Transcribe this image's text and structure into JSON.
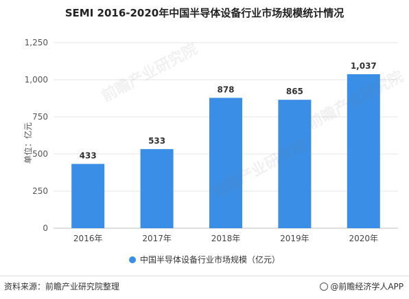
{
  "title": "SEMI 2016-2020年中国半导体设备行业市场规模统计情况",
  "ylabel": "单位：亿元",
  "legend_label": "中国半导体设备行业市场规模（亿元）",
  "source": "资料来源：前瞻产业研究院整理",
  "brand": "@前瞻经济学人APP",
  "watermark": "前瞻产业研究院",
  "colors": {
    "bar": "#3a8ee6",
    "grid": "#e5e5e5",
    "axis": "#bfbfbf"
  },
  "chart_data": {
    "type": "bar",
    "categories": [
      "2016年",
      "2017年",
      "2018年",
      "2019年",
      "2020年"
    ],
    "values": [
      433,
      533,
      878,
      865,
      1037
    ],
    "data_labels": [
      "433",
      "533",
      "878",
      "865",
      "1,037"
    ],
    "ylim": [
      0,
      1250
    ],
    "yticks": [
      0,
      250,
      500,
      750,
      1000,
      1250
    ],
    "grid": true,
    "legend": "bottom"
  }
}
